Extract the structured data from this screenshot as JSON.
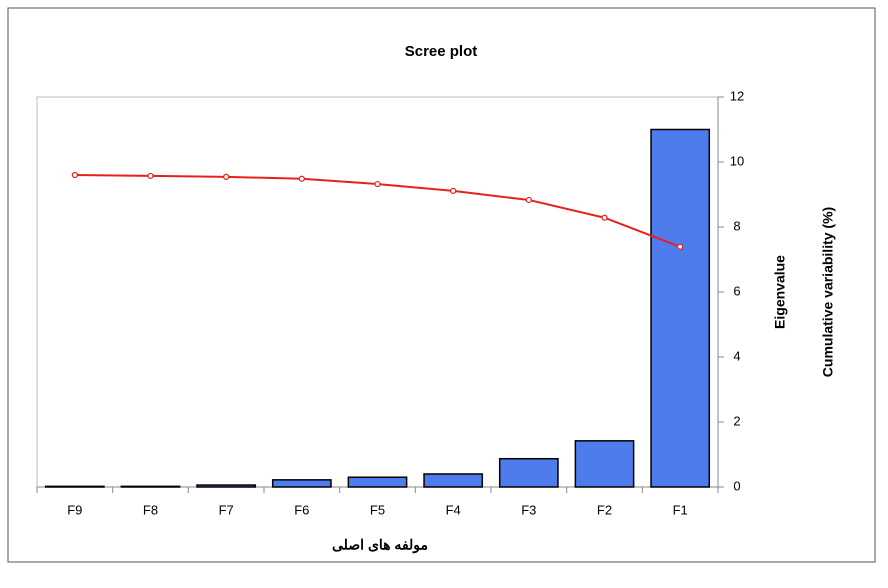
{
  "chart_data": {
    "type": "bar-line",
    "title": "Scree plot",
    "x_label": "مولفه های اصلی",
    "y_label": "Eigenvalue",
    "y2_label": "Cumulative variability (%)",
    "categories": [
      "F9",
      "F8",
      "F7",
      "F6",
      "F5",
      "F4",
      "F3",
      "F2",
      "F1"
    ],
    "series": [
      {
        "name": "Eigenvalue",
        "type": "bar",
        "color": "#4f7cec",
        "values": [
          0.02,
          0.02,
          0.06,
          0.22,
          0.3,
          0.4,
          0.87,
          1.42,
          11.0
        ]
      },
      {
        "name": "Cumulative variability (%)",
        "type": "line",
        "axis": "y2",
        "color": "#e8201c",
        "values": [
          100,
          99.7,
          99.4,
          98.8,
          97.1,
          94.9,
          92,
          86.3,
          77
        ]
      }
    ],
    "ylim": [
      0,
      12
    ],
    "yticks": [
      0,
      2,
      4,
      6,
      8,
      10,
      12
    ],
    "y2lim": [
      0,
      125
    ]
  }
}
